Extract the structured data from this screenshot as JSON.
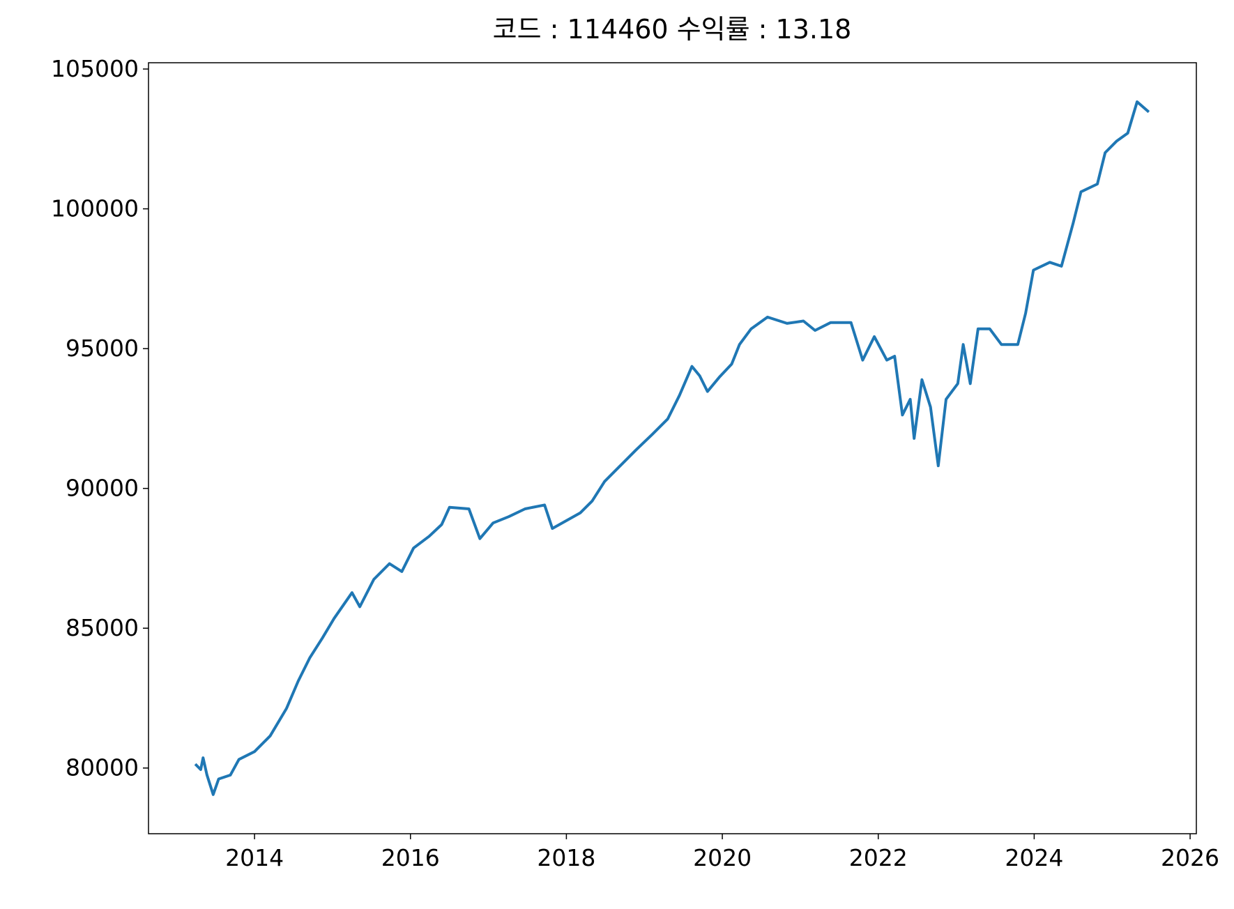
{
  "chart_data": {
    "type": "line",
    "title": "코드 : 114460 수익률 : 13.18",
    "x": [
      2013.24,
      2013.31,
      2013.34,
      2013.39,
      2013.47,
      2013.54,
      2013.69,
      2013.8,
      2014.0,
      2014.2,
      2014.41,
      2014.56,
      2014.71,
      2014.87,
      2015.02,
      2015.25,
      2015.35,
      2015.53,
      2015.73,
      2015.89,
      2016.04,
      2016.24,
      2016.4,
      2016.5,
      2016.75,
      2016.89,
      2017.06,
      2017.26,
      2017.47,
      2017.72,
      2017.82,
      2018.0,
      2018.18,
      2018.33,
      2018.49,
      2018.69,
      2018.89,
      2019.1,
      2019.3,
      2019.45,
      2019.61,
      2019.71,
      2019.81,
      2019.96,
      2020.12,
      2020.22,
      2020.37,
      2020.58,
      2020.83,
      2021.04,
      2021.19,
      2021.39,
      2021.65,
      2021.8,
      2021.95,
      2022.11,
      2022.21,
      2022.31,
      2022.41,
      2022.46,
      2022.56,
      2022.67,
      2022.77,
      2022.87,
      2023.02,
      2023.09,
      2023.18,
      2023.28,
      2023.43,
      2023.58,
      2023.79,
      2023.89,
      2023.99,
      2024.2,
      2024.35,
      2024.5,
      2024.6,
      2024.81,
      2024.91,
      2025.06,
      2025.2,
      2025.32,
      2025.47
    ],
    "series": [
      {
        "color": "#1f77b4",
        "values": [
          80140,
          79944,
          80364,
          79748,
          79048,
          79608,
          79748,
          80308,
          80588,
          81148,
          82128,
          83108,
          83948,
          84648,
          85348,
          86272,
          85768,
          86748,
          87308,
          87028,
          87868,
          88288,
          88708,
          89324,
          89268,
          88204,
          88764,
          88988,
          89268,
          89408,
          88568,
          88848,
          89128,
          89548,
          90248,
          90808,
          91368,
          91928,
          92488,
          93328,
          94364,
          94028,
          93468,
          93972,
          94448,
          95148,
          95708,
          96128,
          95904,
          95988,
          95652,
          95932,
          95932,
          94588,
          95428,
          94588,
          94728,
          92628,
          93188,
          91788,
          93888,
          92908,
          90808,
          93188,
          93748,
          95148,
          93748,
          95708,
          95708,
          95148,
          95148,
          96268,
          97808,
          98088,
          97948,
          99488,
          100608,
          100888,
          102008,
          102428,
          102708,
          103828,
          103464
        ]
      }
    ],
    "xlim": [
      2012.64,
      2026.08
    ],
    "ylim": [
      77650,
      105225
    ],
    "xticks": [
      2014,
      2016,
      2018,
      2020,
      2022,
      2024,
      2026
    ],
    "yticks": [
      80000,
      85000,
      90000,
      95000,
      100000,
      105000
    ]
  }
}
